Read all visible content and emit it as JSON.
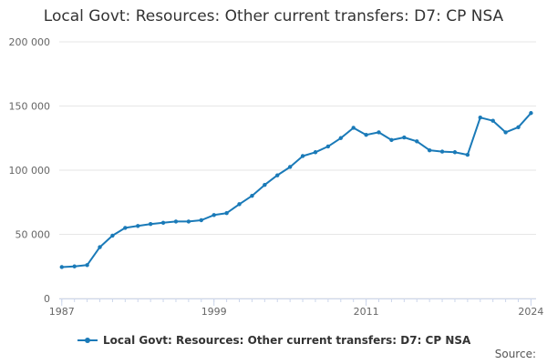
{
  "chart_data": {
    "type": "line",
    "title": "Local Govt: Resources: Other current transfers: D7: CP NSA",
    "xlabel": "",
    "ylabel": "",
    "x": [
      1987,
      1988,
      1989,
      1990,
      1991,
      1992,
      1993,
      1994,
      1995,
      1996,
      1997,
      1998,
      1999,
      2000,
      2001,
      2002,
      2003,
      2004,
      2005,
      2006,
      2007,
      2008,
      2009,
      2010,
      2011,
      2012,
      2013,
      2014,
      2015,
      2016,
      2017,
      2018,
      2019,
      2020,
      2021,
      2022,
      2023,
      2024
    ],
    "series": [
      {
        "name": "Local Govt: Resources: Other current transfers: D7: CP NSA",
        "color": "#1a7ab8",
        "values": [
          24500,
          25000,
          26000,
          40000,
          49000,
          55000,
          56500,
          58000,
          59000,
          60000,
          60000,
          61000,
          65000,
          66500,
          73500,
          80000,
          88500,
          96000,
          102500,
          111000,
          114000,
          118500,
          125000,
          133000,
          127500,
          129500,
          123500,
          125500,
          122500,
          115500,
          114500,
          114000,
          112000,
          141000,
          138500,
          129500,
          133500,
          144500
        ]
      }
    ],
    "xticks": [
      "1987",
      "1999",
      "2011",
      "2024"
    ],
    "yticks": [
      "0",
      "50 000",
      "100 000",
      "150 000",
      "200 000"
    ],
    "xlim": [
      1986.8,
      2024.4
    ],
    "ylim": [
      0,
      200000
    ],
    "grid": true,
    "legend_placement": "bottom"
  },
  "footer": {
    "source_label": "Source:"
  }
}
